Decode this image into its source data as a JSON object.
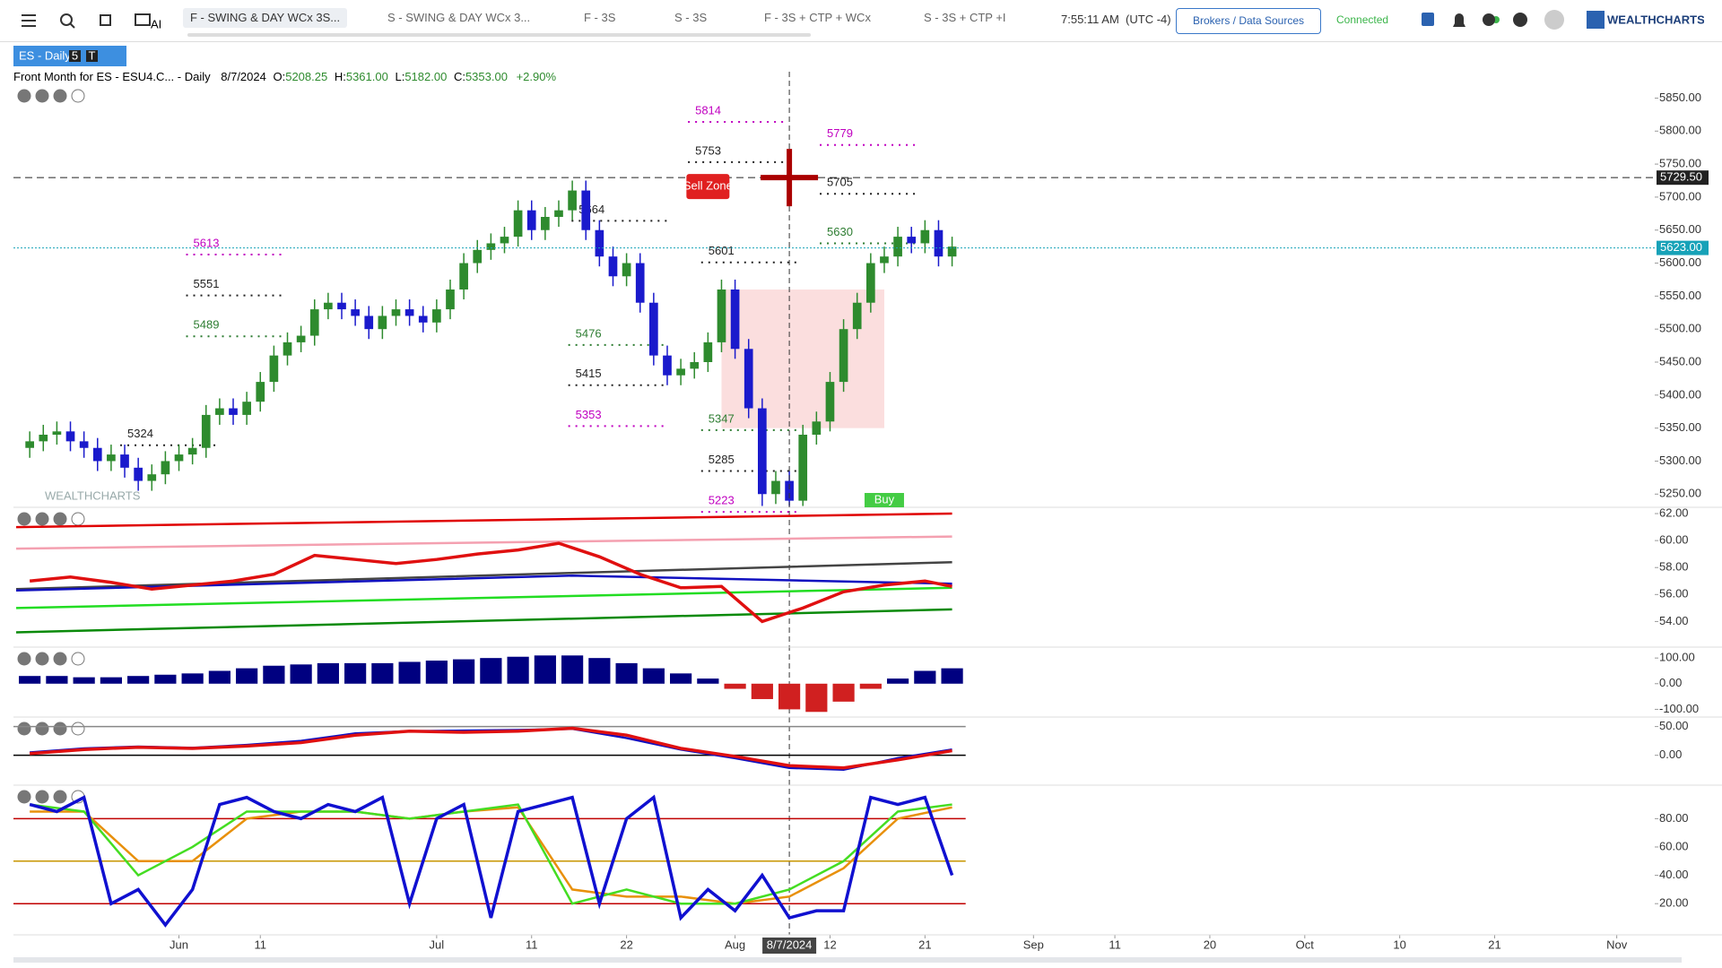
{
  "toolbar": {
    "ai": "AI",
    "tabs": [
      "F - SWING & DAY WCx 3S...",
      "S - SWING & DAY WCx 3...",
      "F - 3S",
      "S - 3S",
      "F - 3S + CTP + WCx",
      "S - 3S + CTP +I"
    ],
    "time": "7:55:11 AM",
    "timezone": "(UTC -4)",
    "brokers": "Brokers / Data Sources",
    "status": "Connected",
    "brand": "WEALTHCHARTS"
  },
  "header": {
    "symbol": "ES - Daily",
    "badges": [
      "5",
      "T"
    ],
    "title": "Front Month for ES - ESU4.C... - Daily",
    "date": "8/7/2024",
    "ohlc": [
      {
        "label": "O:",
        "value": "5208.25"
      },
      {
        "label": "H:",
        "value": "5361.00"
      },
      {
        "label": "L:",
        "value": "5182.00"
      },
      {
        "label": "C:",
        "value": "5353.00"
      }
    ],
    "change": "+2.90%",
    "watermark": "WEALTHCHARTS"
  },
  "chart_data": [
    {
      "type": "candlestick",
      "up_color": "#2e8b2e",
      "down_color": "#1a1acc",
      "open": [
        5320,
        5330,
        5340,
        5345,
        5330,
        5320,
        5300,
        5310,
        5290,
        5270,
        5280,
        5300,
        5310,
        5320,
        5370,
        5380,
        5370,
        5390,
        5420,
        5460,
        5480,
        5490,
        5530,
        5540,
        5530,
        5520,
        5500,
        5520,
        5530,
        5520,
        5510,
        5530,
        5560,
        5600,
        5620,
        5630,
        5640,
        5680,
        5650,
        5670,
        5680,
        5710,
        5650,
        5610,
        5580,
        5600,
        5540,
        5460,
        5430,
        5440,
        5450,
        5480,
        5560,
        5470,
        5380,
        5250,
        5270,
        5240,
        5340,
        5360,
        5420,
        5500,
        5540,
        5600,
        5610,
        5640,
        5630,
        5650,
        5610
      ],
      "high": [
        5345,
        5355,
        5360,
        5360,
        5345,
        5335,
        5325,
        5325,
        5305,
        5295,
        5315,
        5325,
        5335,
        5385,
        5395,
        5395,
        5405,
        5435,
        5475,
        5495,
        5505,
        5545,
        5555,
        5555,
        5545,
        5535,
        5535,
        5545,
        5545,
        5535,
        5545,
        5575,
        5615,
        5635,
        5645,
        5655,
        5695,
        5695,
        5685,
        5695,
        5725,
        5725,
        5665,
        5625,
        5615,
        5615,
        5555,
        5475,
        5455,
        5465,
        5495,
        5575,
        5575,
        5485,
        5395,
        5285,
        5285,
        5355,
        5375,
        5435,
        5515,
        5555,
        5615,
        5625,
        5655,
        5655,
        5665,
        5665,
        5640
      ],
      "low": [
        5305,
        5315,
        5325,
        5315,
        5305,
        5285,
        5285,
        5275,
        5255,
        5255,
        5265,
        5285,
        5295,
        5305,
        5355,
        5355,
        5355,
        5375,
        5405,
        5445,
        5465,
        5475,
        5515,
        5515,
        5505,
        5485,
        5485,
        5505,
        5505,
        5495,
        5495,
        5515,
        5545,
        5585,
        5605,
        5615,
        5625,
        5635,
        5635,
        5655,
        5665,
        5635,
        5595,
        5565,
        5565,
        5525,
        5445,
        5415,
        5415,
        5425,
        5435,
        5465,
        5455,
        5365,
        5232,
        5235,
        5232,
        5232,
        5325,
        5345,
        5405,
        5485,
        5525,
        5585,
        5595,
        5615,
        5615,
        5595,
        5595
      ],
      "close": [
        5330,
        5340,
        5345,
        5330,
        5320,
        5300,
        5310,
        5290,
        5270,
        5280,
        5300,
        5310,
        5320,
        5370,
        5380,
        5370,
        5390,
        5420,
        5460,
        5480,
        5490,
        5530,
        5540,
        5530,
        5520,
        5500,
        5520,
        5530,
        5520,
        5510,
        5530,
        5560,
        5600,
        5620,
        5630,
        5640,
        5680,
        5650,
        5670,
        5680,
        5710,
        5650,
        5610,
        5580,
        5600,
        5540,
        5460,
        5430,
        5440,
        5450,
        5480,
        5560,
        5470,
        5380,
        5250,
        5270,
        5240,
        5340,
        5360,
        5420,
        5500,
        5540,
        5600,
        5610,
        5640,
        5630,
        5650,
        5610,
        5625
      ],
      "xlim": [
        -1.2,
        119.8
      ],
      "xticks": [
        {
          "value": 11,
          "label": "Jun"
        },
        {
          "value": 17,
          "label": "11"
        },
        {
          "value": 30,
          "label": "Jul"
        },
        {
          "value": 37,
          "label": "11"
        },
        {
          "value": 44,
          "label": "22"
        },
        {
          "value": 52,
          "label": "Aug"
        },
        {
          "value": 56,
          "label": "8/7/2024",
          "highlight": true
        },
        {
          "value": 59,
          "label": "12"
        },
        {
          "value": 66,
          "label": "21"
        },
        {
          "value": 74,
          "label": "Sep"
        },
        {
          "value": 80,
          "label": "11"
        },
        {
          "value": 87,
          "label": "20"
        },
        {
          "value": 94,
          "label": "Oct"
        },
        {
          "value": 101,
          "label": "10"
        },
        {
          "value": 108,
          "label": "21"
        },
        {
          "value": 117,
          "label": "Nov"
        }
      ],
      "ylim": [
        5230,
        5890
      ],
      "yticks": [
        {
          "value": 5250,
          "label": "5250.00"
        },
        {
          "value": 5300,
          "label": "5300.00"
        },
        {
          "value": 5350,
          "label": "5350.00"
        },
        {
          "value": 5400,
          "label": "5400.00"
        },
        {
          "value": 5450,
          "label": "5450.00"
        },
        {
          "value": 5500,
          "label": "5500.00"
        },
        {
          "value": 5550,
          "label": "5550.00"
        },
        {
          "value": 5600,
          "label": "5600.00"
        },
        {
          "value": 5650,
          "label": "5650.00"
        },
        {
          "value": 5700,
          "label": "5700.00"
        },
        {
          "value": 5750,
          "label": "5750.00"
        },
        {
          "value": 5800,
          "label": "5800.00"
        },
        {
          "value": 5850,
          "label": "5850.00"
        }
      ],
      "price_labels": [
        {
          "value": 5729.5,
          "label": "5729.50",
          "color": "#222222"
        },
        {
          "value": 5623,
          "label": "5623.00",
          "color": "#17a2b8"
        }
      ],
      "levels": [
        {
          "value": 5814,
          "color": "#c000c0"
        },
        {
          "value": 5753,
          "color": "#222222"
        },
        {
          "value": 5779,
          "color": "#c000c0"
        },
        {
          "value": 5705,
          "color": "#222222"
        },
        {
          "value": 5630,
          "color": "#2e7d32"
        },
        {
          "value": 5664,
          "color": "#222222"
        },
        {
          "value": 5613,
          "color": "#c000c0"
        },
        {
          "value": 5551,
          "color": "#222222"
        },
        {
          "value": 5489,
          "color": "#2e7d32"
        },
        {
          "value": 5476,
          "color": "#2e7d32"
        },
        {
          "value": 5415,
          "color": "#222222"
        },
        {
          "value": 5353,
          "color": "#c000c0"
        },
        {
          "value": 5347,
          "color": "#2e7d32"
        },
        {
          "value": 5285,
          "color": "#222222"
        },
        {
          "value": 5223,
          "color": "#c000c0"
        },
        {
          "value": 5324,
          "color": "#222222"
        },
        {
          "value": 5601,
          "color": "#222222"
        }
      ],
      "signals": {
        "sell": "Sell Zone",
        "buy": "Buy"
      }
    },
    {
      "type": "line",
      "ylim": [
        52.1,
        62.4
      ],
      "yticks": [
        {
          "value": 62,
          "label": "62.00"
        },
        {
          "value": 60,
          "label": "60.00"
        },
        {
          "value": 58,
          "label": "58.00"
        },
        {
          "value": 56,
          "label": "56.00"
        },
        {
          "value": 54,
          "label": "54.00"
        }
      ],
      "series": [
        {
          "color": "#e00000",
          "x": [
            -1,
            68
          ],
          "values": [
            61.0,
            62.0
          ]
        },
        {
          "color": "#f4a0b0",
          "x": [
            -1,
            68
          ],
          "values": [
            59.4,
            60.3
          ]
        },
        {
          "color": "#444444",
          "x": [
            -1,
            40,
            68
          ],
          "values": [
            56.4,
            57.6,
            58.4
          ]
        },
        {
          "color": "#1010c0",
          "x": [
            -1,
            40,
            68
          ],
          "values": [
            56.3,
            57.4,
            56.8
          ]
        },
        {
          "color": "#22dd22",
          "x": [
            -1,
            68
          ],
          "values": [
            55.0,
            56.5
          ]
        },
        {
          "color": "#0a8a0a",
          "x": [
            -1,
            68
          ],
          "values": [
            53.2,
            54.9
          ]
        },
        {
          "color": "#e01010",
          "x": [
            0,
            3,
            6,
            9,
            12,
            15,
            18,
            21,
            24,
            27,
            30,
            33,
            36,
            39,
            42,
            45,
            48,
            51,
            54,
            57,
            60,
            63,
            66,
            68
          ],
          "values": [
            57.0,
            57.3,
            56.9,
            56.4,
            56.7,
            57.0,
            57.5,
            58.9,
            58.6,
            58.3,
            58.6,
            59.0,
            59.3,
            59.8,
            58.8,
            57.5,
            56.5,
            56.6,
            54.0,
            55.0,
            56.2,
            56.7,
            57.0,
            56.6
          ]
        }
      ]
    },
    {
      "type": "bar",
      "ylim": [
        -130,
        139
      ],
      "yticks": [
        {
          "value": 100,
          "label": "100.00"
        },
        {
          "value": 0,
          "label": "0.00"
        },
        {
          "value": -100,
          "label": "-100.00"
        }
      ],
      "series": [
        {
          "color": "#000080",
          "negative_color": "#d02020",
          "x": [
            0,
            2,
            4,
            6,
            8,
            10,
            12,
            14,
            16,
            18,
            20,
            22,
            24,
            26,
            28,
            30,
            32,
            34,
            36,
            38,
            40,
            42,
            44,
            46,
            48,
            50,
            52,
            54,
            56,
            58,
            60,
            62,
            64,
            66,
            68
          ],
          "values": [
            30,
            30,
            25,
            25,
            30,
            35,
            40,
            50,
            60,
            70,
            75,
            80,
            80,
            80,
            85,
            90,
            95,
            100,
            105,
            110,
            110,
            100,
            80,
            60,
            40,
            20,
            -20,
            -60,
            -100,
            -110,
            -70,
            -20,
            20,
            50,
            60
          ]
        }
      ]
    },
    {
      "type": "line",
      "ylim": [
        -52,
        65
      ],
      "yticks": [
        {
          "value": 50,
          "label": "50.00"
        },
        {
          "value": 0,
          "label": "0.00"
        }
      ],
      "reference_lines": [
        {
          "value": 0,
          "color": "#000000"
        },
        {
          "value": 50,
          "color": "#888888"
        }
      ],
      "series": [
        {
          "color": "#1010c0",
          "x": [
            0,
            4,
            8,
            12,
            16,
            20,
            24,
            28,
            32,
            36,
            40,
            44,
            48,
            52,
            56,
            60,
            64,
            68
          ],
          "values": [
            5,
            12,
            15,
            13,
            18,
            25,
            38,
            42,
            43,
            44,
            46,
            30,
            10,
            -5,
            -22,
            -25,
            -5,
            10
          ]
        },
        {
          "color": "#e01010",
          "x": [
            0,
            4,
            8,
            12,
            16,
            20,
            24,
            28,
            32,
            36,
            40,
            44,
            48,
            52,
            56,
            60,
            64,
            68
          ],
          "values": [
            3,
            10,
            14,
            12,
            16,
            22,
            35,
            42,
            40,
            42,
            47,
            35,
            12,
            -2,
            -18,
            -22,
            -8,
            8
          ]
        }
      ]
    },
    {
      "type": "line",
      "ylim": [
        -2,
        103
      ],
      "yticks": [
        {
          "value": 80,
          "label": "80.00"
        },
        {
          "value": 60,
          "label": "60.00"
        },
        {
          "value": 40,
          "label": "40.00"
        },
        {
          "value": 20,
          "label": "20.00"
        }
      ],
      "reference_lines": [
        {
          "value": 80,
          "color": "#c00000"
        },
        {
          "value": 50,
          "color": "#c89600"
        },
        {
          "value": 20,
          "color": "#c00000"
        }
      ],
      "series": [
        {
          "color": "#e8900a",
          "x": [
            0,
            4,
            8,
            12,
            16,
            20,
            24,
            28,
            32,
            36,
            40,
            44,
            48,
            52,
            56,
            60,
            64,
            68
          ],
          "values": [
            85,
            85,
            50,
            50,
            80,
            85,
            85,
            80,
            85,
            88,
            30,
            25,
            25,
            20,
            25,
            45,
            80,
            88
          ]
        },
        {
          "color": "#44dd22",
          "x": [
            0,
            4,
            8,
            12,
            16,
            20,
            24,
            28,
            32,
            36,
            40,
            44,
            48,
            52,
            56,
            60,
            64,
            68
          ],
          "values": [
            90,
            85,
            40,
            60,
            85,
            85,
            85,
            80,
            85,
            90,
            20,
            30,
            20,
            20,
            30,
            50,
            85,
            90
          ]
        },
        {
          "color": "#1010d0",
          "x": [
            0,
            2,
            4,
            6,
            8,
            10,
            12,
            14,
            16,
            18,
            20,
            22,
            24,
            26,
            28,
            30,
            32,
            34,
            36,
            38,
            40,
            42,
            44,
            46,
            48,
            50,
            52,
            54,
            56,
            58,
            60,
            62,
            64,
            66,
            68
          ],
          "values": [
            90,
            85,
            95,
            20,
            30,
            5,
            30,
            90,
            95,
            85,
            80,
            90,
            85,
            95,
            20,
            80,
            90,
            10,
            85,
            90,
            95,
            20,
            80,
            95,
            10,
            30,
            15,
            40,
            10,
            15,
            15,
            95,
            90,
            95,
            40
          ]
        }
      ]
    }
  ]
}
